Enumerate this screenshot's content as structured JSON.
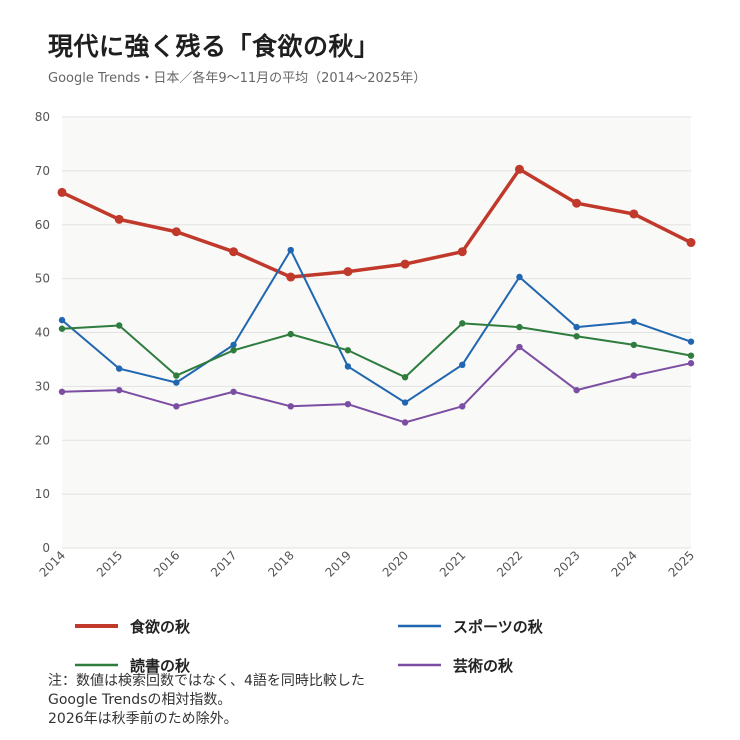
{
  "title": "現代に強く残る「食欲の秋」",
  "subtitle": "Google Trends・日本／各年9〜11月の平均（2014〜2025年）",
  "note": {
    "line1": "注：数値は検索回数ではなく、4語を同時比較した",
    "line2": "Google Trendsの相対指数。",
    "line3": "2026年は秋季前のため除外。"
  },
  "chart_data": {
    "type": "line",
    "x": [
      "2014",
      "2015",
      "2016",
      "2017",
      "2018",
      "2019",
      "2020",
      "2021",
      "2022",
      "2023",
      "2024",
      "2025"
    ],
    "ylim": [
      0,
      80
    ],
    "yticks": [
      0,
      10,
      20,
      30,
      40,
      50,
      60,
      70,
      80
    ],
    "grid": true,
    "legend_position": "bottom",
    "series": [
      {
        "name": "食欲の秋",
        "color": "#c0392b",
        "width": 3.5,
        "marker": 4.5,
        "values": [
          66.0,
          61.0,
          58.7,
          55.0,
          50.3,
          51.3,
          52.7,
          55.0,
          70.3,
          64.0,
          62.0,
          56.7
        ]
      },
      {
        "name": "スポーツの秋",
        "color": "#2066b0",
        "width": 2,
        "marker": 3.2,
        "values": [
          42.3,
          33.3,
          30.7,
          37.7,
          55.3,
          33.7,
          27.0,
          34.0,
          50.3,
          41.0,
          42.0,
          38.3
        ]
      },
      {
        "name": "読書の秋",
        "color": "#2e7d3e",
        "width": 2,
        "marker": 3.2,
        "values": [
          40.7,
          41.3,
          32.0,
          36.7,
          39.7,
          36.7,
          31.7,
          41.7,
          41.0,
          39.3,
          37.7,
          35.7
        ]
      },
      {
        "name": "芸術の秋",
        "color": "#7b4ea3",
        "width": 2,
        "marker": 3.2,
        "values": [
          29.0,
          29.3,
          26.3,
          29.0,
          26.3,
          26.7,
          23.3,
          26.3,
          37.3,
          29.3,
          32.0,
          34.3
        ]
      }
    ]
  }
}
